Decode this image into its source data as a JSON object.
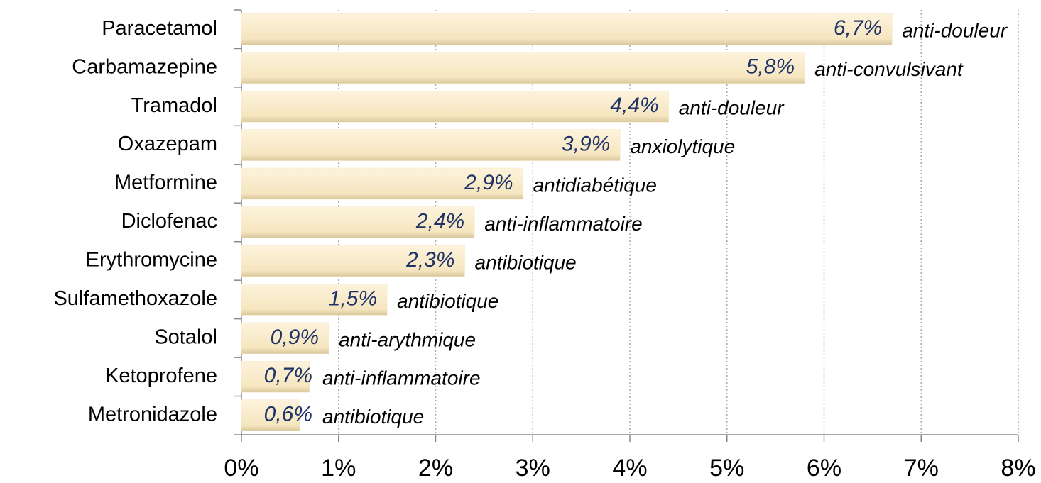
{
  "chart_data": {
    "type": "hbar",
    "categories": [
      "Paracetamol",
      "Carbamazepine",
      "Tramadol",
      "Oxazepam",
      "Metformine",
      "Diclofenac",
      "Erythromycine",
      "Sulfamethoxazole",
      "Sotalol",
      "Ketoprofene",
      "Metronidazole"
    ],
    "values": [
      6.7,
      5.8,
      4.4,
      3.9,
      2.9,
      2.4,
      2.3,
      1.5,
      0.9,
      0.7,
      0.6
    ],
    "value_labels": [
      "6,7%",
      "5,8%",
      "4,4%",
      "3,9%",
      "2,9%",
      "2,4%",
      "2,3%",
      "1,5%",
      "0,9%",
      "0,7%",
      "0,6%"
    ],
    "annotations": [
      "anti-douleur",
      "anti-convulsivant",
      "anti-douleur",
      "anxiolytique",
      "antidiabétique",
      "anti-inflammatoire",
      "antibiotique",
      "antibiotique",
      "anti-arythmique",
      "anti-inflammatoire",
      "antibiotique"
    ],
    "color": "#f7e8c6",
    "xlim": [
      0,
      8
    ],
    "xticks": [
      {
        "value": 0,
        "label": "0%"
      },
      {
        "value": 1,
        "label": "1%"
      },
      {
        "value": 2,
        "label": "2%"
      },
      {
        "value": 3,
        "label": "3%"
      },
      {
        "value": 4,
        "label": "4%"
      },
      {
        "value": 5,
        "label": "5%"
      },
      {
        "value": 6,
        "label": "6%"
      },
      {
        "value": 7,
        "label": "7%"
      },
      {
        "value": 8,
        "label": "8%"
      }
    ],
    "grid": true
  }
}
